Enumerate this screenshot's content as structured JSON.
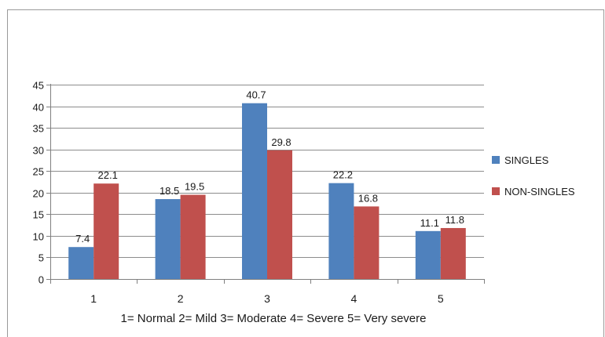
{
  "chart_data": {
    "type": "bar",
    "title": "",
    "xlabel": "1= Normal  2= Mild  3= Moderate  4= Severe  5= Very severe",
    "ylabel": "",
    "categories": [
      "1",
      "2",
      "3",
      "4",
      "5"
    ],
    "series": [
      {
        "name": "SINGLES",
        "values": [
          7.4,
          18.5,
          40.7,
          22.2,
          11.1
        ],
        "labels": [
          "7.4",
          "18.5",
          "40.7",
          "22.2",
          "11.1"
        ],
        "color": "#4f81bd"
      },
      {
        "name": "NON-SINGLES",
        "values": [
          22.1,
          19.5,
          29.8,
          16.8,
          11.8
        ],
        "labels": [
          "22.1",
          "19.5",
          "29.8",
          "16.8",
          "11.8"
        ],
        "color": "#c0504d"
      }
    ],
    "ylim": [
      0,
      45
    ],
    "yticks": [
      0,
      5,
      10,
      15,
      20,
      25,
      30,
      35,
      40,
      45
    ],
    "grid": true,
    "legend": "right"
  }
}
